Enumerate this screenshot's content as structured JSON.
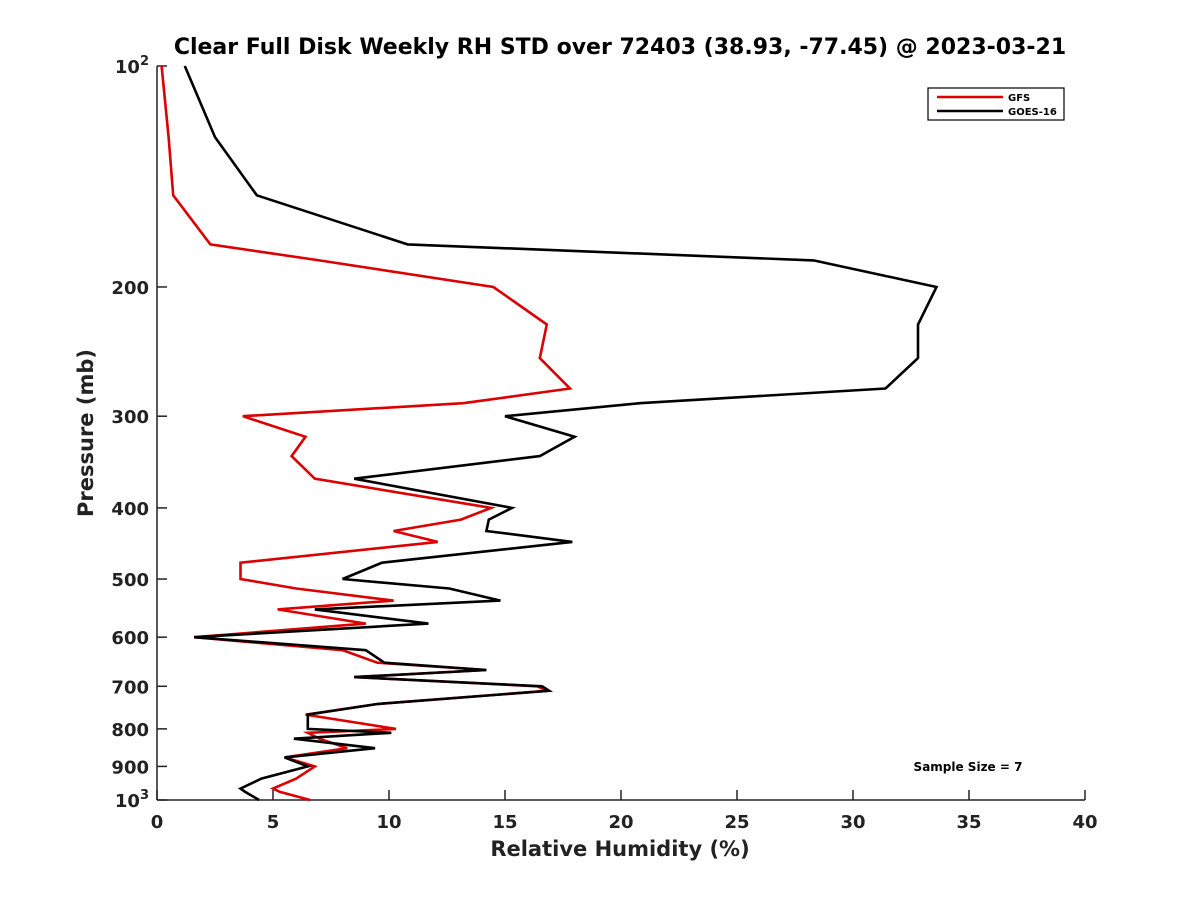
{
  "chart_data": {
    "type": "line",
    "title": "Clear Full Disk Weekly RH STD over 72403 (38.93, -77.45) @ 2023-03-21",
    "xlabel": "Relative Humidity (%)",
    "ylabel": "Pressure (mb)",
    "xlim": [
      0,
      40
    ],
    "ylim": [
      100,
      1000
    ],
    "y_scale": "log",
    "y_reversed": true,
    "x_ticks": [
      0,
      5,
      10,
      15,
      20,
      25,
      30,
      35,
      40
    ],
    "y_ticks": [
      {
        "value": 100,
        "base": "10",
        "exp": "2"
      },
      {
        "value": 200,
        "label": "200"
      },
      {
        "value": 300,
        "label": "300"
      },
      {
        "value": 400,
        "label": "400"
      },
      {
        "value": 500,
        "label": "500"
      },
      {
        "value": 600,
        "label": "600"
      },
      {
        "value": 700,
        "label": "700"
      },
      {
        "value": 800,
        "label": "800"
      },
      {
        "value": 900,
        "label": "900"
      },
      {
        "value": 1000,
        "base": "10",
        "exp": "3"
      }
    ],
    "grid": false,
    "legend_position": "top-right",
    "annotation": "Sample Size = 7",
    "series": [
      {
        "name": "GFS",
        "color": "#dd0000",
        "points": [
          [
            0.2,
            100
          ],
          [
            0.5,
            125
          ],
          [
            0.7,
            150
          ],
          [
            2.3,
            175
          ],
          [
            7.0,
            184
          ],
          [
            14.5,
            200
          ],
          [
            16.8,
            225
          ],
          [
            16.5,
            250
          ],
          [
            17.8,
            275
          ],
          [
            13.2,
            288
          ],
          [
            3.7,
            300
          ],
          [
            6.4,
            320
          ],
          [
            5.8,
            340
          ],
          [
            6.8,
            365
          ],
          [
            14.4,
            400
          ],
          [
            13.1,
            415
          ],
          [
            10.2,
            430
          ],
          [
            12.1,
            445
          ],
          [
            3.6,
            475
          ],
          [
            3.6,
            500
          ],
          [
            6.0,
            515
          ],
          [
            10.2,
            535
          ],
          [
            5.2,
            550
          ],
          [
            9.0,
            575
          ],
          [
            1.6,
            600
          ],
          [
            8.0,
            625
          ],
          [
            9.5,
            650
          ],
          [
            14.2,
            665
          ],
          [
            8.5,
            680
          ],
          [
            16.4,
            700
          ],
          [
            16.8,
            710
          ],
          [
            9.5,
            740
          ],
          [
            6.4,
            765
          ],
          [
            10.3,
            800
          ],
          [
            6.5,
            810
          ],
          [
            7.0,
            825
          ],
          [
            8.2,
            850
          ],
          [
            5.5,
            875
          ],
          [
            6.8,
            900
          ],
          [
            6.0,
            935
          ],
          [
            5.0,
            965
          ],
          [
            5.3,
            975
          ],
          [
            6.6,
            1000
          ]
        ]
      },
      {
        "name": "GOES-16",
        "color": "#000000",
        "points": [
          [
            1.2,
            100
          ],
          [
            2.5,
            125
          ],
          [
            4.3,
            150
          ],
          [
            10.8,
            175
          ],
          [
            28.3,
            184
          ],
          [
            33.6,
            200
          ],
          [
            32.8,
            225
          ],
          [
            32.8,
            250
          ],
          [
            31.4,
            275
          ],
          [
            20.8,
            288
          ],
          [
            15.0,
            300
          ],
          [
            18.0,
            320
          ],
          [
            16.5,
            340
          ],
          [
            8.5,
            365
          ],
          [
            15.3,
            400
          ],
          [
            14.3,
            415
          ],
          [
            14.2,
            430
          ],
          [
            17.9,
            445
          ],
          [
            9.7,
            475
          ],
          [
            8.0,
            500
          ],
          [
            12.6,
            515
          ],
          [
            14.8,
            535
          ],
          [
            6.8,
            550
          ],
          [
            11.7,
            575
          ],
          [
            1.6,
            600
          ],
          [
            9.0,
            625
          ],
          [
            9.8,
            650
          ],
          [
            14.2,
            665
          ],
          [
            8.5,
            680
          ],
          [
            16.6,
            700
          ],
          [
            16.9,
            710
          ],
          [
            9.5,
            740
          ],
          [
            6.5,
            765
          ],
          [
            6.5,
            800
          ],
          [
            10.1,
            810
          ],
          [
            5.9,
            825
          ],
          [
            9.4,
            850
          ],
          [
            5.5,
            875
          ],
          [
            6.5,
            900
          ],
          [
            4.5,
            935
          ],
          [
            3.6,
            965
          ],
          [
            3.8,
            975
          ],
          [
            4.4,
            1000
          ]
        ]
      }
    ]
  }
}
